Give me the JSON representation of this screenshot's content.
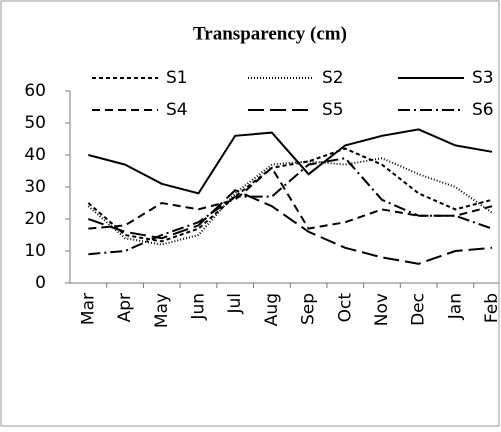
{
  "chart_data": {
    "type": "line",
    "title": "Transparency (cm)",
    "categories": [
      "Mar",
      "Apr",
      "May",
      "Jun",
      "Jul",
      "Aug",
      "Sep",
      "Oct",
      "Nov",
      "Dec",
      "Jan",
      "Feb"
    ],
    "series": [
      {
        "name": "S1",
        "color": "#000000",
        "dash": "4,3",
        "values": [
          25,
          15,
          13,
          17,
          27,
          36,
          38,
          42,
          37,
          28,
          23,
          26
        ]
      },
      {
        "name": "S2",
        "color": "#000000",
        "dash": "1,2",
        "values": [
          24,
          14,
          12,
          15,
          28,
          37,
          38,
          37,
          39,
          34,
          30,
          22
        ]
      },
      {
        "name": "S3",
        "color": "#000000",
        "dash": "none",
        "values": [
          40,
          37,
          31,
          28,
          46,
          47,
          34,
          43,
          46,
          48,
          43,
          41
        ]
      },
      {
        "name": "S4",
        "color": "#000000",
        "dash": "8,5",
        "values": [
          17,
          18,
          25,
          23,
          26,
          36,
          17,
          19,
          23,
          21,
          21,
          24
        ]
      },
      {
        "name": "S5",
        "color": "#000000",
        "dash": "16,6",
        "values": [
          20,
          16,
          14,
          18,
          29,
          24,
          16,
          11,
          8,
          6,
          10,
          11
        ]
      },
      {
        "name": "S6",
        "color": "#000000",
        "dash": "12,4,2,4",
        "values": [
          9,
          10,
          15,
          19,
          27,
          27,
          37,
          39,
          26,
          21,
          21,
          17
        ]
      }
    ],
    "ylim": [
      0,
      60
    ],
    "yticks": [
      0,
      10,
      20,
      30,
      40,
      50,
      60
    ],
    "grid": false
  }
}
